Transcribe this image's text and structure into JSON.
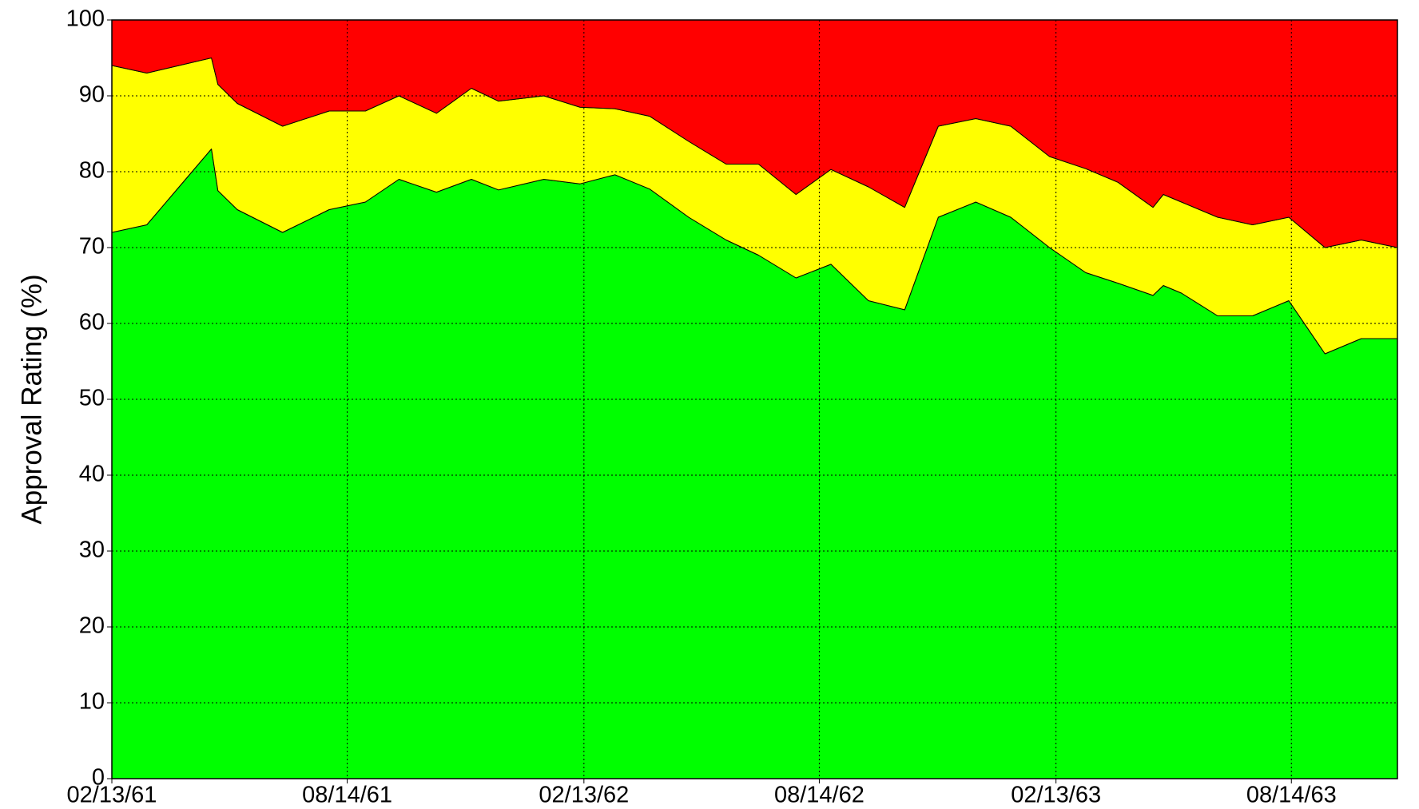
{
  "chart_data": {
    "type": "stacked_area",
    "y_label": "Approval Rating (%)",
    "x": [
      "02/13/61",
      "03/12/61",
      "04/06/61",
      "05/01/61",
      "05/06/61",
      "05/21/61",
      "06/25/61",
      "07/31/61",
      "08/28/61",
      "09/23/61",
      "10/22/61",
      "11/18/61",
      "12/09/61",
      "01/13/62",
      "02/10/62",
      "03/09/62",
      "04/05/62",
      "05/05/62",
      "06/03/62",
      "06/28/62",
      "07/27/62",
      "08/23/62",
      "09/21/62",
      "10/19/62",
      "11/14/62",
      "12/13/62",
      "01/09/63",
      "02/08/63",
      "03/08/63",
      "04/02/63",
      "04/29/63",
      "05/07/63",
      "05/21/63",
      "06/18/63",
      "07/15/63",
      "08/12/63",
      "09/09/63",
      "10/07/63",
      "11/04/63"
    ],
    "series": [
      {
        "color": "#00ff00",
        "values": [
          72,
          73,
          78,
          83,
          77.5,
          75,
          72,
          75,
          76,
          79,
          77.3,
          79,
          77.6,
          79,
          78.4,
          79.6,
          77.7,
          74,
          71,
          69,
          66,
          67.8,
          63,
          61.8,
          74,
          76,
          74,
          70,
          66.7,
          65.3,
          63.7,
          65,
          64,
          61,
          61,
          63,
          56,
          58,
          58
        ]
      },
      {
        "color": "#ffff00",
        "values": [
          22,
          20,
          16,
          12,
          14,
          14,
          14,
          13,
          12,
          11,
          10.4,
          12,
          11.7,
          11,
          10.1,
          8.7,
          9.6,
          10,
          10,
          12,
          11,
          12.5,
          15,
          13.5,
          12,
          11,
          12,
          12,
          13.7,
          13.3,
          11.6,
          12,
          12,
          13,
          12,
          11,
          14,
          13,
          12
        ]
      },
      {
        "color": "#ff0000",
        "values": [
          6,
          7,
          6,
          5,
          8.5,
          11,
          14,
          12,
          12,
          10,
          12.3,
          9,
          10.7,
          10,
          11.5,
          11.7,
          12.7,
          16,
          19,
          19,
          23,
          19.7,
          22,
          24.7,
          14,
          13,
          14,
          18,
          19.6,
          21.4,
          24.7,
          23,
          24,
          26,
          27,
          26,
          30,
          29,
          30
        ]
      }
    ],
    "xlim": [
      "02/13/61",
      "11/04/63"
    ],
    "xticks": [
      "02/13/61",
      "08/14/61",
      "02/13/62",
      "08/14/62",
      "02/13/63",
      "08/14/63"
    ],
    "ylim": [
      0,
      100
    ],
    "yticks": [
      0,
      10,
      20,
      30,
      40,
      50,
      60,
      70,
      80,
      90,
      100
    ],
    "grid": true
  }
}
